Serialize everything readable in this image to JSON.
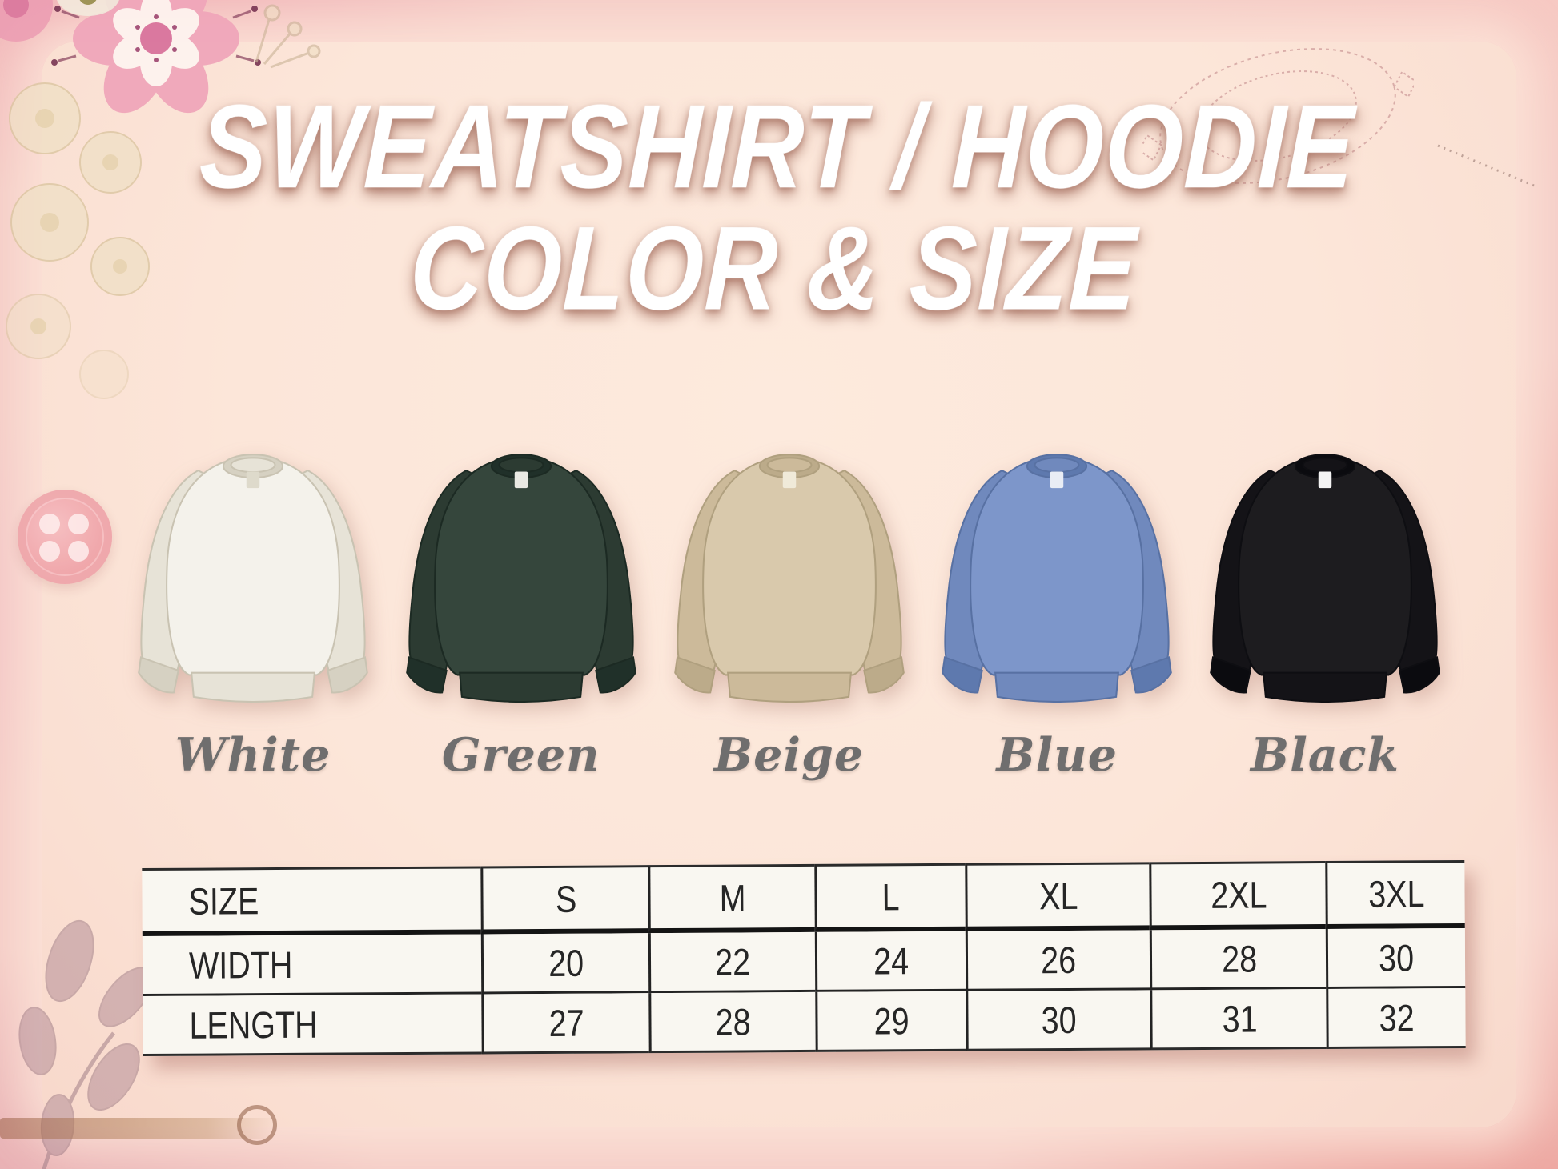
{
  "title": {
    "line1": "SWEATSHIRT / HOODIE",
    "line2": "COLOR & SIZE"
  },
  "shirts": [
    {
      "label": "White",
      "color": "#f4f2eb",
      "shade": "#e7e3d7",
      "dark": "#d6d1c2",
      "line": "#c9c3b2",
      "tag": "#dedacb"
    },
    {
      "label": "Green",
      "color": "#35463c",
      "shade": "#2c3b32",
      "dark": "#203029",
      "line": "#1c2a23",
      "tag": "#e9e9e3"
    },
    {
      "label": "Beige",
      "color": "#d9c9ac",
      "shade": "#ccba9a",
      "dark": "#bcab8a",
      "line": "#b0a07f",
      "tag": "#f0ead9"
    },
    {
      "label": "Blue",
      "color": "#7d96ca",
      "shade": "#7089bd",
      "dark": "#5e79ae",
      "line": "#5871a3",
      "tag": "#e9edf5"
    },
    {
      "label": "Black",
      "color": "#1d1c1f",
      "shade": "#141317",
      "dark": "#0b0b0f",
      "line": "#0e0e12",
      "tag": "#f4f4f4"
    }
  ],
  "chart_data": {
    "type": "table",
    "title": "SWEATSHIRT / HOODIE COLOR & SIZE",
    "columns": [
      "SIZE",
      "S",
      "M",
      "L",
      "XL",
      "2XL",
      "3XL"
    ],
    "rows": [
      {
        "label": "WIDTH",
        "values": [
          20,
          22,
          24,
          26,
          28,
          30
        ]
      },
      {
        "label": "LENGTH",
        "values": [
          27,
          28,
          29,
          30,
          31,
          32
        ]
      }
    ]
  },
  "colors": {
    "label_text": "#6f6e6e",
    "table_line": "#232323",
    "table_cell_bg": "#f9f7f1",
    "panel_bg": "#fce6d9",
    "border_pink": "#f5cdc7",
    "title_text": "#ffffff"
  }
}
